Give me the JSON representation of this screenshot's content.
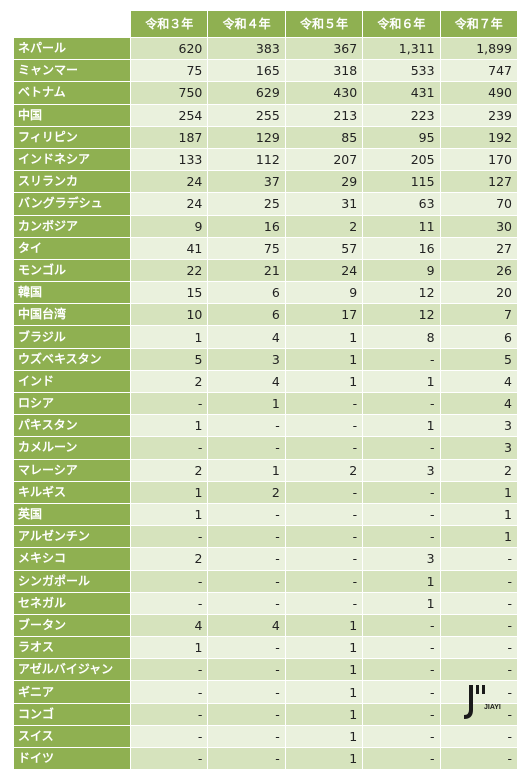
{
  "table": {
    "columns": [
      "令和３年",
      "令和４年",
      "令和５年",
      "令和６年",
      "令和７年"
    ],
    "rows": [
      {
        "country": "ネパール",
        "values": [
          "620",
          "383",
          "367",
          "1,311",
          "1,899"
        ]
      },
      {
        "country": "ミャンマー",
        "values": [
          "75",
          "165",
          "318",
          "533",
          "747"
        ]
      },
      {
        "country": "ベトナム",
        "values": [
          "750",
          "629",
          "430",
          "431",
          "490"
        ]
      },
      {
        "country": "中国",
        "values": [
          "254",
          "255",
          "213",
          "223",
          "239"
        ]
      },
      {
        "country": "フィリピン",
        "values": [
          "187",
          "129",
          "85",
          "95",
          "192"
        ]
      },
      {
        "country": "インドネシア",
        "values": [
          "133",
          "112",
          "207",
          "205",
          "170"
        ]
      },
      {
        "country": "スリランカ",
        "values": [
          "24",
          "37",
          "29",
          "115",
          "127"
        ]
      },
      {
        "country": "バングラデシュ",
        "values": [
          "24",
          "25",
          "31",
          "63",
          "70"
        ]
      },
      {
        "country": "カンボジア",
        "values": [
          "9",
          "16",
          "2",
          "11",
          "30"
        ]
      },
      {
        "country": "タイ",
        "values": [
          "41",
          "75",
          "57",
          "16",
          "27"
        ]
      },
      {
        "country": "モンゴル",
        "values": [
          "22",
          "21",
          "24",
          "9",
          "26"
        ]
      },
      {
        "country": "韓国",
        "values": [
          "15",
          "6",
          "9",
          "12",
          "20"
        ]
      },
      {
        "country": "中国台湾",
        "values": [
          "10",
          "6",
          "17",
          "12",
          "7"
        ]
      },
      {
        "country": "ブラジル",
        "values": [
          "1",
          "4",
          "1",
          "8",
          "6"
        ]
      },
      {
        "country": "ウズベキスタン",
        "values": [
          "5",
          "3",
          "1",
          "-",
          "5"
        ]
      },
      {
        "country": "インド",
        "values": [
          "2",
          "4",
          "1",
          "1",
          "4"
        ]
      },
      {
        "country": "ロシア",
        "values": [
          "-",
          "1",
          "-",
          "-",
          "4"
        ]
      },
      {
        "country": "パキスタン",
        "values": [
          "1",
          "-",
          "-",
          "1",
          "3"
        ]
      },
      {
        "country": "カメルーン",
        "values": [
          "-",
          "-",
          "-",
          "-",
          "3"
        ]
      },
      {
        "country": "マレーシア",
        "values": [
          "2",
          "1",
          "2",
          "3",
          "2"
        ]
      },
      {
        "country": "キルギス",
        "values": [
          "1",
          "2",
          "-",
          "-",
          "1"
        ]
      },
      {
        "country": "英国",
        "values": [
          "1",
          "-",
          "-",
          "-",
          "1"
        ]
      },
      {
        "country": "アルゼンチン",
        "values": [
          "-",
          "-",
          "-",
          "-",
          "1"
        ]
      },
      {
        "country": "メキシコ",
        "values": [
          "2",
          "-",
          "-",
          "3",
          "-"
        ]
      },
      {
        "country": "シンガポール",
        "values": [
          "-",
          "-",
          "-",
          "1",
          "-"
        ]
      },
      {
        "country": "セネガル",
        "values": [
          "-",
          "-",
          "-",
          "1",
          "-"
        ]
      },
      {
        "country": "ブータン",
        "values": [
          "4",
          "4",
          "1",
          "-",
          "-"
        ]
      },
      {
        "country": "ラオス",
        "values": [
          "1",
          "-",
          "1",
          "-",
          "-"
        ]
      },
      {
        "country": "アゼルバイジャン",
        "values": [
          "-",
          "-",
          "1",
          "-",
          "-"
        ]
      },
      {
        "country": "ギニア",
        "values": [
          "-",
          "-",
          "1",
          "-",
          "-"
        ]
      },
      {
        "country": "コンゴ",
        "values": [
          "-",
          "-",
          "1",
          "-",
          "-"
        ]
      },
      {
        "country": "スイス",
        "values": [
          "-",
          "-",
          "1",
          "-",
          "-"
        ]
      },
      {
        "country": "ドイツ",
        "values": [
          "-",
          "-",
          "1",
          "-",
          "-"
        ]
      }
    ]
  },
  "logo": {
    "mark": "J",
    "text": "JIAYI"
  },
  "colors": {
    "header": "#8fb051",
    "row_dark": "#d6e3bd",
    "row_light": "#eaf1dd"
  }
}
